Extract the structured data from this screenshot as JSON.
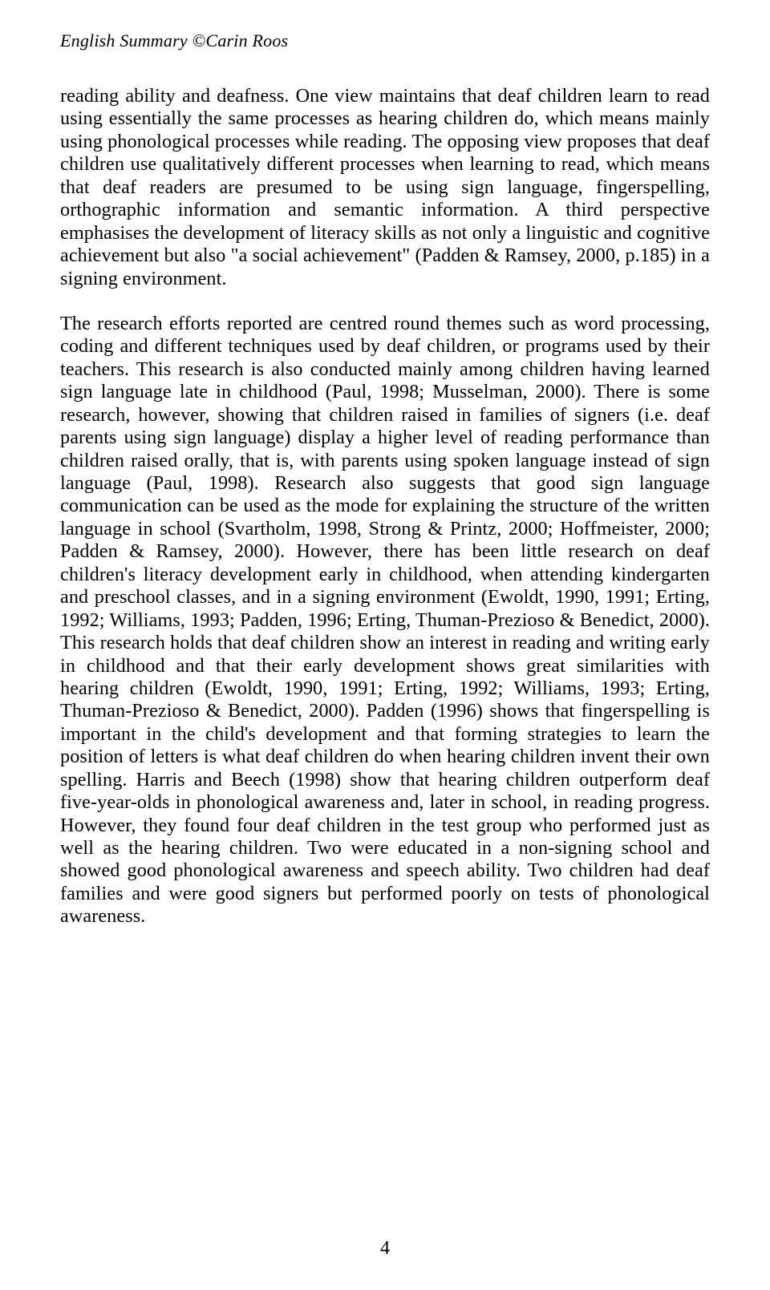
{
  "header": {
    "text": "English Summary ©Carin Roos"
  },
  "paragraphs": {
    "p1": "reading ability and deafness. One view maintains that deaf children learn to read using essentially the same processes as hearing children do, which means mainly using phonological processes while reading. The opposing view proposes that deaf children use qualitatively different processes when learning to read, which means that deaf readers are presumed to be using sign language, fingerspelling, orthographic information and semantic information. A third perspective emphasises the development of literacy skills as not only a linguistic and cognitive achievement but also \"a social achievement\" (Padden & Ramsey, 2000, p.185) in a signing environment.",
    "p2": "The research efforts reported are centred round themes such as word processing, coding and different techniques used by deaf children, or programs used by their teachers. This research is also conducted mainly among children having learned sign language late in childhood (Paul, 1998; Musselman, 2000). There is some research, however, showing that children raised in families of signers (i.e. deaf parents using sign language) display a higher level of reading performance than children raised orally, that is, with parents using spoken language instead of sign language (Paul, 1998). Research also suggests that good sign language communication can be used as the mode for explaining the structure of the written language in school (Svartholm, 1998, Strong & Printz, 2000; Hoffmeister, 2000; Padden & Ramsey, 2000). However, there has been little research on deaf children's literacy development early in childhood, when attending kindergarten and preschool classes, and in a signing environment (Ewoldt, 1990, 1991; Erting, 1992; Williams, 1993; Padden, 1996; Erting, Thuman-Prezioso & Benedict, 2000). This research holds that deaf children show an interest in reading and writing early in childhood and that their early development shows great similarities with hearing children (Ewoldt, 1990, 1991; Erting, 1992; Williams, 1993; Erting, Thuman-Prezioso & Benedict, 2000). Padden (1996) shows that fingerspelling is important in the child's development and that forming strategies to learn the position of letters is what deaf children do when hearing children invent their own spelling. Harris and Beech (1998) show that hearing children outperform deaf five-year-olds in phonological awareness and, later in school, in reading progress. However, they found four deaf children in the test group who performed just as well as the hearing children. Two were educated in a non-signing school and showed good phonological awareness and speech ability. Two children had deaf families and were good signers but performed poorly on tests of phonological awareness."
  },
  "pageNumber": "4"
}
